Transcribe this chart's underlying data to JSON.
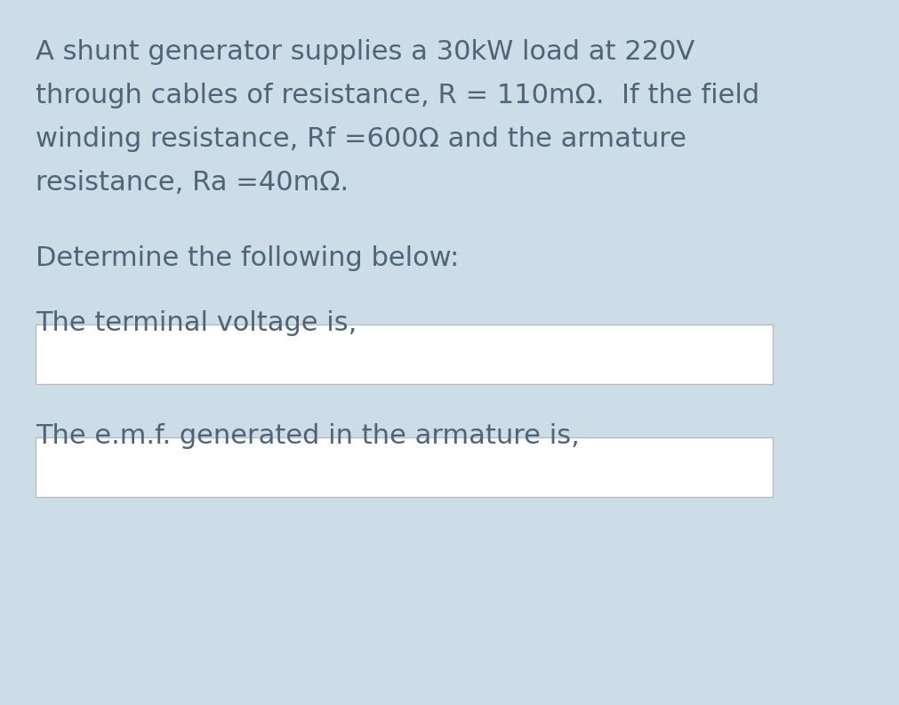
{
  "background_color": "#ccdde8",
  "text_color": "#4f6475",
  "line1": "A shunt generator supplies a 30kW load at 220V",
  "line2": "through cables of resistance, R = 110mΩ.  If the field",
  "line3": "winding resistance, Rf =600Ω and the armature",
  "line4": "resistance, Ra =40mΩ.",
  "line5": "Determine the following below:",
  "line6": "The terminal voltage is,",
  "line7": "The e.m.f. generated in the armature is,",
  "box_facecolor": "#ffffff",
  "box_edgecolor": "#bbbbbb",
  "font_size": 22,
  "fig_width": 10.11,
  "fig_height": 7.93,
  "dpi": 100
}
